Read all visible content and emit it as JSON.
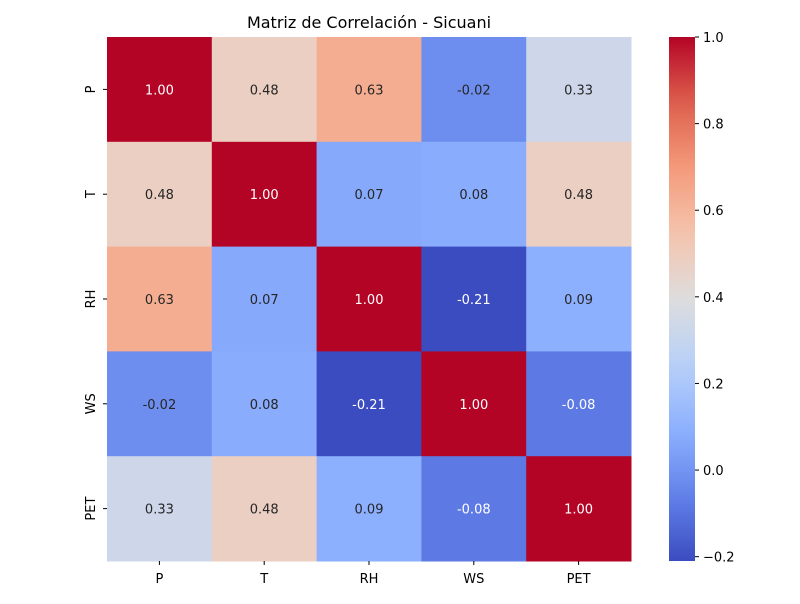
{
  "chart_data": {
    "type": "heatmap",
    "title": "Matriz de Correlación - Sicuani",
    "xlabel": "",
    "ylabel": "",
    "x_categories": [
      "P",
      "T",
      "RH",
      "WS",
      "PET"
    ],
    "y_categories": [
      "P",
      "T",
      "RH",
      "WS",
      "PET"
    ],
    "values": [
      [
        1.0,
        0.48,
        0.63,
        -0.02,
        0.33
      ],
      [
        0.48,
        1.0,
        0.07,
        0.08,
        0.48
      ],
      [
        0.63,
        0.07,
        1.0,
        -0.21,
        0.09
      ],
      [
        -0.02,
        0.08,
        -0.21,
        1.0,
        -0.08
      ],
      [
        0.33,
        0.48,
        0.09,
        -0.08,
        1.0
      ]
    ],
    "value_labels": [
      [
        "1.00",
        "0.48",
        "0.63",
        "-0.02",
        "0.33"
      ],
      [
        "0.48",
        "1.00",
        "0.07",
        "0.08",
        "0.48"
      ],
      [
        "0.63",
        "0.07",
        "1.00",
        "-0.21",
        "0.09"
      ],
      [
        "-0.02",
        "0.08",
        "-0.21",
        "1.00",
        "-0.08"
      ],
      [
        "0.33",
        "0.48",
        "0.09",
        "-0.08",
        "1.00"
      ]
    ],
    "colormap": "coolwarm",
    "color_range": [
      -0.21,
      1.0
    ],
    "colorbar": {
      "ticks": [
        -0.2,
        0.0,
        0.2,
        0.4,
        0.6,
        0.8,
        1.0
      ],
      "tick_labels": [
        "−0.2",
        "0.0",
        "0.2",
        "0.4",
        "0.6",
        "0.8",
        "1.0"
      ],
      "placement": "right"
    },
    "grid": false,
    "legend": "none"
  }
}
